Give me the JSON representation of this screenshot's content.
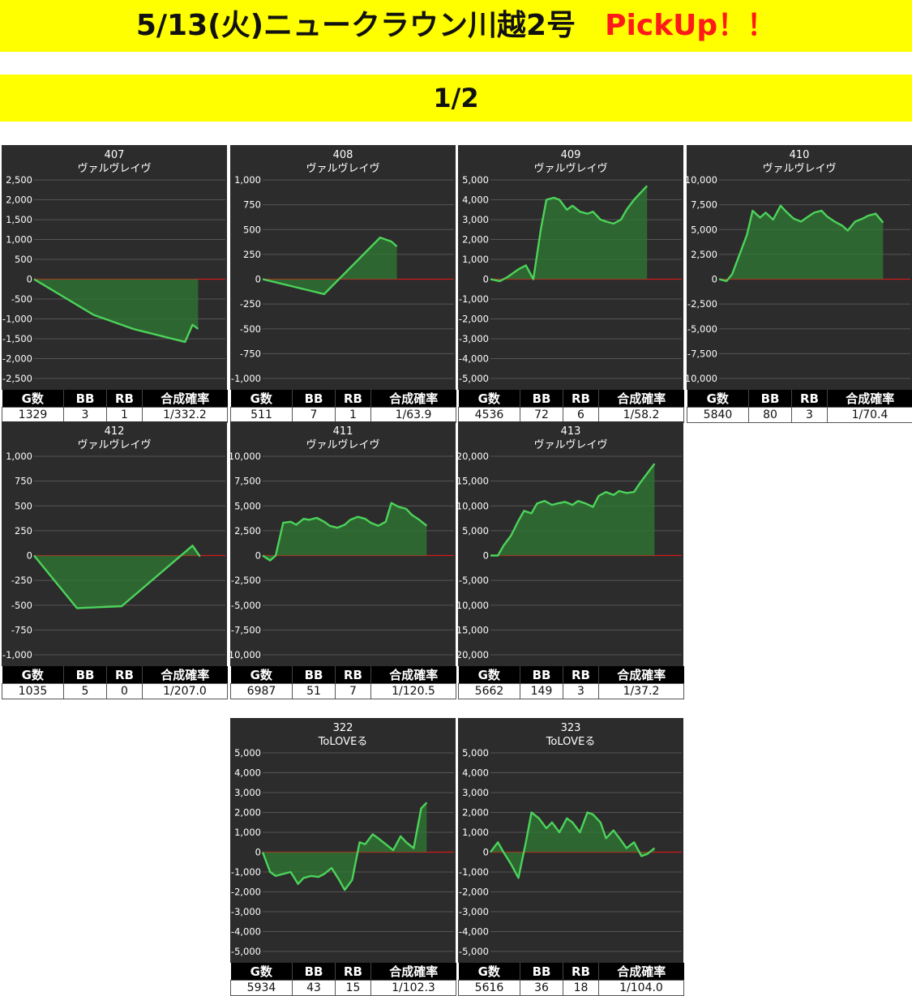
{
  "header": {
    "title": "5/13(火)ニュークラウン川越2号",
    "pickup": "PickUp！！",
    "page": "1/2"
  },
  "stat_headers": [
    "G数",
    "BB",
    "RB",
    "合成確率"
  ],
  "colors": {
    "panel_bg": "#2c2c2c",
    "line": "#4cd35a",
    "fill": "#2f7a33",
    "zero_line": "#d01818",
    "grid": "#555555",
    "banner": "#ffff00",
    "pickup": "#ff1a1a"
  },
  "chart_data": [
    {
      "type": "area",
      "machine_no": "407",
      "model": "ヴァルヴレイヴ",
      "yticks": [
        "2,500",
        "2,000",
        "1,500",
        "1,000",
        "500",
        "0",
        "-500",
        "-1,000",
        "-1,500",
        "-2,000",
        "-2,500"
      ],
      "ylim": [
        -2500,
        2500
      ],
      "x": [
        0,
        0.32,
        0.44,
        0.53,
        0.81,
        0.85,
        0.88
      ],
      "y": [
        0,
        -900,
        -1100,
        -1250,
        -1580,
        -1150,
        -1250
      ],
      "stats": [
        "1329",
        "3",
        "1",
        "1/332.2"
      ]
    },
    {
      "type": "area",
      "machine_no": "408",
      "model": "ヴァルヴレイヴ",
      "yticks": [
        "1,000",
        "750",
        "500",
        "250",
        "0",
        "-250",
        "-500",
        "-750",
        "-1,000"
      ],
      "ylim": [
        -1000,
        1000
      ],
      "x": [
        0,
        0.33,
        0.63,
        0.69,
        0.72
      ],
      "y": [
        0,
        -150,
        420,
        380,
        330
      ],
      "stats": [
        "511",
        "7",
        "1",
        "1/63.9"
      ]
    },
    {
      "type": "area",
      "machine_no": "409",
      "model": "ヴァルヴレイヴ",
      "yticks": [
        "5,000",
        "4,000",
        "3,000",
        "2,000",
        "1,000",
        "0",
        "-1,000",
        "-2,000",
        "-3,000",
        "-4,000",
        "-5,000"
      ],
      "ylim": [
        -5000,
        5000
      ],
      "x": [
        0,
        0.05,
        0.09,
        0.12,
        0.15,
        0.19,
        0.23,
        0.27,
        0.3,
        0.34,
        0.37,
        0.41,
        0.44,
        0.48,
        0.52,
        0.55,
        0.59,
        0.62,
        0.66,
        0.7,
        0.73,
        0.77,
        0.8,
        0.84
      ],
      "y": [
        0,
        -100,
        100,
        300,
        500,
        700,
        0,
        2500,
        4000,
        4100,
        4000,
        3500,
        3700,
        3400,
        3300,
        3400,
        3000,
        2900,
        2800,
        3000,
        3500,
        4000,
        4300,
        4700
      ],
      "stats": [
        "4536",
        "72",
        "6",
        "1/58.2"
      ]
    },
    {
      "type": "area",
      "machine_no": "410",
      "model": "ヴァルヴレイヴ",
      "yticks": [
        "10,000",
        "7,500",
        "5,000",
        "2,500",
        "0",
        "-2,500",
        "-5,000",
        "-7,500",
        "-10,000"
      ],
      "ylim": [
        -10000,
        10000
      ],
      "x": [
        0,
        0.04,
        0.07,
        0.11,
        0.15,
        0.18,
        0.22,
        0.25,
        0.29,
        0.33,
        0.36,
        0.4,
        0.44,
        0.47,
        0.51,
        0.55,
        0.58,
        0.62,
        0.66,
        0.69,
        0.73,
        0.77,
        0.8,
        0.84,
        0.88
      ],
      "y": [
        0,
        -200,
        500,
        2500,
        4500,
        6900,
        6200,
        6700,
        6000,
        7400,
        6800,
        6100,
        5800,
        6200,
        6700,
        6900,
        6300,
        5800,
        5400,
        4900,
        5800,
        6100,
        6400,
        6600,
        5700
      ],
      "stats": [
        "5840",
        "80",
        "3",
        "1/70.4"
      ]
    },
    {
      "type": "area",
      "machine_no": "412",
      "model": "ヴァルヴレイヴ",
      "yticks": [
        "1,000",
        "750",
        "500",
        "250",
        "0",
        "-250",
        "-500",
        "-750",
        "-1,000"
      ],
      "ylim": [
        -1000,
        1000
      ],
      "x": [
        0,
        0.23,
        0.47,
        0.85,
        0.89
      ],
      "y": [
        0,
        -530,
        -510,
        100,
        -10
      ],
      "stats": [
        "1035",
        "5",
        "0",
        "1/207.0"
      ]
    },
    {
      "type": "area",
      "machine_no": "411",
      "model": "ヴァルヴレイヴ",
      "yticks": [
        "10,000",
        "7,500",
        "5,000",
        "2,500",
        "0",
        "-2,500",
        "-5,000",
        "-7,500",
        "-10,000"
      ],
      "ylim": [
        -10000,
        10000
      ],
      "x": [
        0,
        0.04,
        0.07,
        0.11,
        0.15,
        0.18,
        0.22,
        0.25,
        0.29,
        0.33,
        0.36,
        0.4,
        0.44,
        0.47,
        0.51,
        0.55,
        0.58,
        0.62,
        0.66,
        0.69,
        0.73,
        0.77,
        0.8,
        0.84,
        0.88
      ],
      "y": [
        0,
        -500,
        0,
        3300,
        3400,
        3100,
        3700,
        3600,
        3800,
        3400,
        3000,
        2800,
        3100,
        3600,
        3900,
        3700,
        3300,
        3000,
        3400,
        5300,
        4900,
        4700,
        4100,
        3600,
        3000
      ],
      "stats": [
        "6987",
        "51",
        "7",
        "1/120.5"
      ]
    },
    {
      "type": "area",
      "machine_no": "413",
      "model": "ヴァルヴレイヴ",
      "yticks": [
        "20,000",
        "15,000",
        "10,000",
        "5,000",
        "0",
        "-5,000",
        "-10,000",
        "-15,000",
        "-20,000"
      ],
      "ylim": [
        -20000,
        20000
      ],
      "x": [
        0,
        0.04,
        0.07,
        0.11,
        0.15,
        0.18,
        0.22,
        0.25,
        0.29,
        0.33,
        0.36,
        0.4,
        0.44,
        0.47,
        0.51,
        0.55,
        0.58,
        0.62,
        0.66,
        0.69,
        0.73,
        0.77,
        0.8,
        0.84,
        0.88
      ],
      "y": [
        0,
        0,
        2000,
        4000,
        7000,
        9000,
        8500,
        10500,
        11000,
        10200,
        10500,
        10800,
        10200,
        11000,
        10500,
        9800,
        12000,
        12800,
        12200,
        13000,
        12600,
        12800,
        14500,
        16500,
        18500
      ],
      "stats": [
        "5662",
        "149",
        "3",
        "1/37.2"
      ]
    },
    {
      "type": "area",
      "machine_no": "322",
      "model": "ToLOVEる",
      "yticks": [
        "5,000",
        "4,000",
        "3,000",
        "2,000",
        "1,000",
        "0",
        "-1,000",
        "-2,000",
        "-3,000",
        "-4,000",
        "-5,000"
      ],
      "ylim": [
        -5000,
        5000
      ],
      "x": [
        0,
        0.04,
        0.07,
        0.11,
        0.15,
        0.19,
        0.22,
        0.26,
        0.3,
        0.33,
        0.37,
        0.41,
        0.44,
        0.48,
        0.52,
        0.55,
        0.59,
        0.62,
        0.66,
        0.7,
        0.74,
        0.77,
        0.81,
        0.85,
        0.88
      ],
      "y": [
        0,
        -1000,
        -1200,
        -1100,
        -1000,
        -1600,
        -1300,
        -1200,
        -1250,
        -1100,
        -800,
        -1400,
        -1900,
        -1400,
        500,
        400,
        900,
        700,
        400,
        100,
        800,
        500,
        200,
        2200,
        2500
      ],
      "stats": [
        "5934",
        "43",
        "15",
        "1/102.3"
      ]
    },
    {
      "type": "area",
      "machine_no": "323",
      "model": "ToLOVEる",
      "yticks": [
        "5,000",
        "4,000",
        "3,000",
        "2,000",
        "1,000",
        "0",
        "-1,000",
        "-2,000",
        "-3,000",
        "-4,000",
        "-5,000"
      ],
      "ylim": [
        -5000,
        5000
      ],
      "x": [
        0,
        0.04,
        0.07,
        0.11,
        0.15,
        0.19,
        0.22,
        0.26,
        0.3,
        0.33,
        0.37,
        0.41,
        0.44,
        0.48,
        0.52,
        0.55,
        0.59,
        0.62,
        0.66,
        0.7,
        0.73,
        0.77,
        0.81,
        0.84,
        0.88
      ],
      "y": [
        0,
        500,
        0,
        -600,
        -1300,
        500,
        2000,
        1700,
        1200,
        1500,
        1000,
        1700,
        1500,
        1000,
        2000,
        1900,
        1500,
        700,
        1100,
        600,
        200,
        500,
        -200,
        -100,
        200
      ],
      "stats": [
        "5616",
        "36",
        "18",
        "1/104.0"
      ]
    }
  ]
}
